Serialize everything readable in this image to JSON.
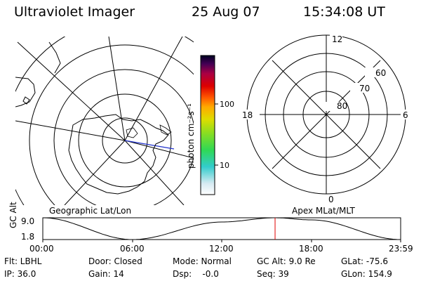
{
  "header": {
    "instrument": "Ultraviolet Imager",
    "date": "25 Aug 07",
    "time": "15:34:08 UT"
  },
  "left_panel": {
    "caption": "Geographic Lat/Lon"
  },
  "right_panel": {
    "caption": "Apex MLat/MLT",
    "mlt_labels": {
      "top": "12",
      "left": "18",
      "right": "6",
      "bottom": "0"
    },
    "lat_labels": [
      "80",
      "70",
      "60"
    ]
  },
  "colorbar": {
    "label": "photon cm⁻²s⁻¹",
    "ticks": [
      "100",
      "10"
    ],
    "scale": "log"
  },
  "timeline": {
    "ylabel": "GC Alt",
    "ytick_top": "9.0",
    "ytick_bottom": "1.8",
    "xticks": [
      "00:00",
      "06:00",
      "12:00",
      "18:00",
      "23:59"
    ],
    "current_time": "15:34",
    "colors": {
      "marker": "#e00000",
      "curve": "#000000"
    },
    "chart_data": {
      "type": "line",
      "x": [
        "00:00",
        "06:00",
        "12:00",
        "15:34",
        "18:00",
        "23:59"
      ],
      "values": [
        9.0,
        1.8,
        7.6,
        9.0,
        8.3,
        1.8
      ],
      "ylim": [
        1.8,
        9.0
      ],
      "ylabel": "GC Alt"
    }
  },
  "status": {
    "flt": "Flt: LBHL",
    "ip": "IP: 36.0",
    "door": "Door: Closed",
    "gain": "Gain: 14",
    "mode": "Mode: Normal",
    "dsp": "Dsp:    -0.0",
    "gcalt": "GC Alt: 9.0 Re",
    "seq": "Seq: 39",
    "glat": "GLat: -75.6",
    "glon": "GLon: 154.9"
  }
}
